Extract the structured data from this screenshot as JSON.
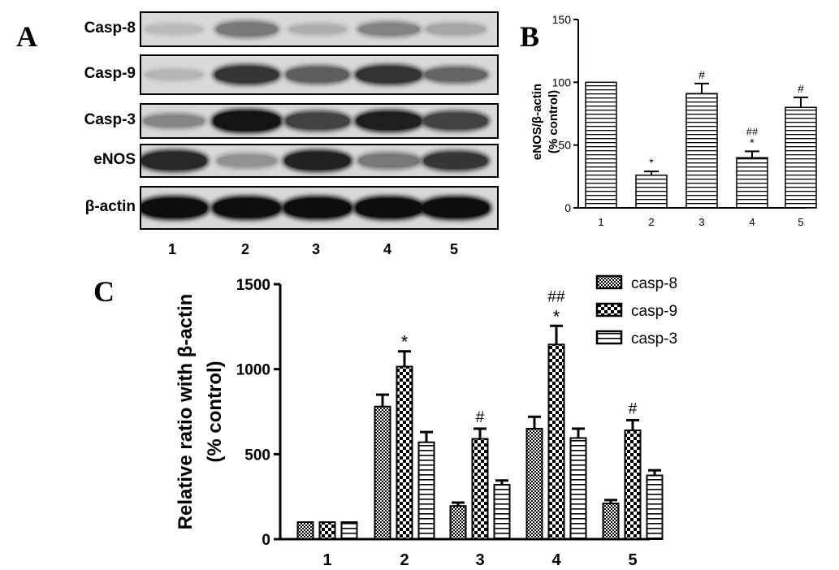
{
  "panels": {
    "a": "A",
    "b": "B",
    "c": "C"
  },
  "blot": {
    "rows": [
      {
        "label": "Casp-8",
        "intensity": [
          0.12,
          0.45,
          0.18,
          0.4,
          0.22
        ]
      },
      {
        "label": "Casp-9",
        "intensity": [
          0.15,
          0.78,
          0.58,
          0.8,
          0.55
        ]
      },
      {
        "label": "Casp-3",
        "intensity": [
          0.38,
          0.95,
          0.72,
          0.9,
          0.72
        ]
      },
      {
        "label": "eNOS",
        "intensity": [
          0.85,
          0.32,
          0.88,
          0.45,
          0.78
        ]
      },
      {
        "label": "β-actin",
        "intensity": [
          0.98,
          0.98,
          0.98,
          0.98,
          0.98
        ]
      }
    ],
    "lanes": [
      "1",
      "2",
      "3",
      "4",
      "5"
    ]
  },
  "chart_data": [
    {
      "type": "bar",
      "panel": "B",
      "categories": [
        "1",
        "2",
        "3",
        "4",
        "5"
      ],
      "values": [
        100,
        26,
        91,
        40,
        80
      ],
      "errors": [
        0,
        3,
        8,
        5,
        8
      ],
      "annotations": [
        [
          "",
          ""
        ],
        [
          "*",
          ""
        ],
        [
          "#",
          ""
        ],
        [
          "*",
          "##"
        ],
        [
          "#",
          ""
        ]
      ],
      "ylabel_lines": [
        "eNOS/β-actin",
        "(% control)"
      ],
      "ylim": [
        0,
        150
      ],
      "yticks": [
        0,
        50,
        100,
        150
      ],
      "pattern": "horizontal-stripes"
    },
    {
      "type": "bar",
      "panel": "C",
      "categories": [
        "1",
        "2",
        "3",
        "4",
        "5"
      ],
      "series": [
        {
          "name": "casp-8",
          "values": [
            100,
            780,
            195,
            650,
            210
          ],
          "errors": [
            0,
            70,
            20,
            70,
            20
          ],
          "pattern": "fine-checker"
        },
        {
          "name": "casp-9",
          "values": [
            100,
            1015,
            590,
            1145,
            640
          ],
          "errors": [
            0,
            90,
            60,
            110,
            60
          ],
          "pattern": "coarse-checker"
        },
        {
          "name": "casp-3",
          "values": [
            100,
            570,
            320,
            595,
            375
          ],
          "errors": [
            0,
            60,
            25,
            55,
            30
          ],
          "pattern": "horizontal-stripes"
        }
      ],
      "annotations": [
        [
          "",
          ""
        ],
        [
          "*",
          ""
        ],
        [
          "#",
          ""
        ],
        [
          "*",
          "##"
        ],
        [
          "#",
          ""
        ]
      ],
      "ylabel_lines": [
        "Relative ratio with β-actin",
        "(% control)"
      ],
      "ylim": [
        0,
        1500
      ],
      "yticks": [
        0,
        500,
        1000,
        1500
      ],
      "legend_position": "top-right"
    }
  ]
}
